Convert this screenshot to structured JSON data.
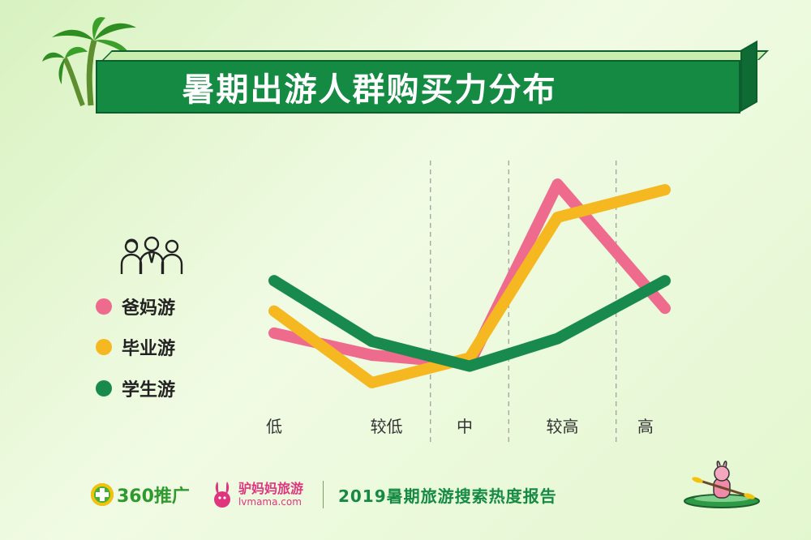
{
  "title": "暑期出游人群购买力分布",
  "footer": {
    "logo_360": "360推广",
    "logo_lvmama_cn": "驴妈妈旅游",
    "logo_lvmama_en": "lvmama.com",
    "report_title": "2019暑期旅游搜索热度报告"
  },
  "legend_icon": "people-group-icon",
  "decorations": [
    "palm-tree-icon",
    "kayak-rabbit-icon"
  ],
  "chart_data": {
    "type": "line",
    "categories": [
      "低",
      "较低",
      "中",
      "较高",
      "高"
    ],
    "grid": "vertical dashed separators between categories",
    "legend_position": "left",
    "series": [
      {
        "name": "爸妈游",
        "color": "#ef6b8e",
        "x": [
          0,
          1,
          2,
          2.9,
          4
        ],
        "values": [
          3.8,
          3.0,
          2.7,
          9.2,
          4.7
        ]
      },
      {
        "name": "毕业游",
        "color": "#f6b820",
        "x": [
          0,
          1,
          2,
          2.9,
          4
        ],
        "values": [
          4.6,
          2.0,
          2.9,
          8.0,
          9.0
        ]
      },
      {
        "name": "学生游",
        "color": "#188a4d",
        "x": [
          0,
          1,
          2,
          2.9,
          4
        ],
        "values": [
          5.7,
          3.5,
          2.6,
          3.6,
          5.7
        ]
      }
    ],
    "ylim": [
      0,
      10
    ]
  }
}
